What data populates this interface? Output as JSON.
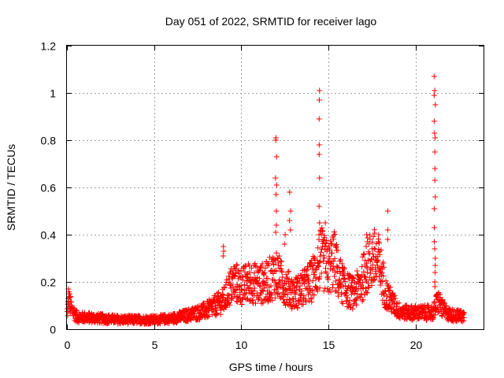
{
  "chart_data": {
    "type": "scatter",
    "title": "Day 051 of 2022, SRMTID for receiver lago",
    "xlabel": "GPS time / hours",
    "ylabel": "SRMTID / TECUs",
    "xlim": [
      0,
      23.9
    ],
    "ylim": [
      0,
      1.2
    ],
    "x_ticks": [
      0,
      5,
      10,
      15,
      20
    ],
    "y_ticks": [
      0,
      0.2,
      0.4,
      0.6,
      0.8,
      1,
      1.2
    ],
    "y_tick_labels": [
      "0",
      "0.2",
      "0.4",
      "0.6",
      "0.8",
      "1",
      "1.2"
    ],
    "grid": true,
    "marker": "+",
    "color": "#ff0000",
    "series": [
      {
        "name": "SRMTID",
        "envelope_x": [
          0,
          0.1,
          0.3,
          0.6,
          1,
          2,
          3,
          4,
          5,
          6,
          7,
          7.5,
          8,
          8.5,
          9,
          9.3,
          9.6,
          10,
          10.5,
          11,
          11.5,
          12,
          12.3,
          12.6,
          13,
          13.5,
          14,
          14.3,
          14.6,
          15,
          15.3,
          15.6,
          16,
          16.5,
          17,
          17.3,
          17.6,
          18,
          18.3,
          18.6,
          19,
          19.5,
          20,
          20.5,
          21,
          21.3,
          21.6,
          22,
          22.8
        ],
        "envelope_y": [
          0.06,
          0.12,
          0.08,
          0.05,
          0.05,
          0.045,
          0.04,
          0.04,
          0.04,
          0.045,
          0.06,
          0.07,
          0.08,
          0.1,
          0.12,
          0.17,
          0.2,
          0.18,
          0.2,
          0.19,
          0.2,
          0.24,
          0.2,
          0.18,
          0.15,
          0.17,
          0.2,
          0.25,
          0.3,
          0.25,
          0.3,
          0.22,
          0.17,
          0.15,
          0.22,
          0.28,
          0.3,
          0.25,
          0.15,
          0.12,
          0.08,
          0.07,
          0.07,
          0.07,
          0.07,
          0.12,
          0.08,
          0.06,
          0.055
        ],
        "spikes": [
          {
            "x": 0.1,
            "values": [
              0.17,
              0.15,
              0.13,
              0.11
            ]
          },
          {
            "x": 9.0,
            "values": [
              0.35,
              0.33,
              0.31
            ]
          },
          {
            "x": 12.0,
            "values": [
              0.81,
              0.8,
              0.73,
              0.64,
              0.61,
              0.57,
              0.5,
              0.44,
              0.41
            ]
          },
          {
            "x": 12.5,
            "values": [
              0.4,
              0.36
            ]
          },
          {
            "x": 12.8,
            "values": [
              0.58,
              0.5,
              0.46,
              0.42
            ]
          },
          {
            "x": 14.5,
            "values": [
              1.01,
              0.97,
              0.89,
              0.78,
              0.74,
              0.64,
              0.52,
              0.45,
              0.4
            ]
          },
          {
            "x": 14.8,
            "values": [
              0.45,
              0.35
            ]
          },
          {
            "x": 17.2,
            "values": [
              0.4,
              0.37,
              0.35
            ]
          },
          {
            "x": 17.9,
            "values": [
              0.4,
              0.37
            ]
          },
          {
            "x": 18.4,
            "values": [
              0.5,
              0.42,
              0.38
            ]
          },
          {
            "x": 21.1,
            "values": [
              1.07,
              1.01,
              0.99,
              0.95,
              0.88,
              0.83,
              0.81,
              0.75,
              0.68,
              0.63,
              0.56,
              0.51,
              0.43,
              0.37,
              0.34,
              0.3,
              0.27,
              0.24,
              0.2,
              0.18
            ]
          }
        ]
      }
    ]
  }
}
